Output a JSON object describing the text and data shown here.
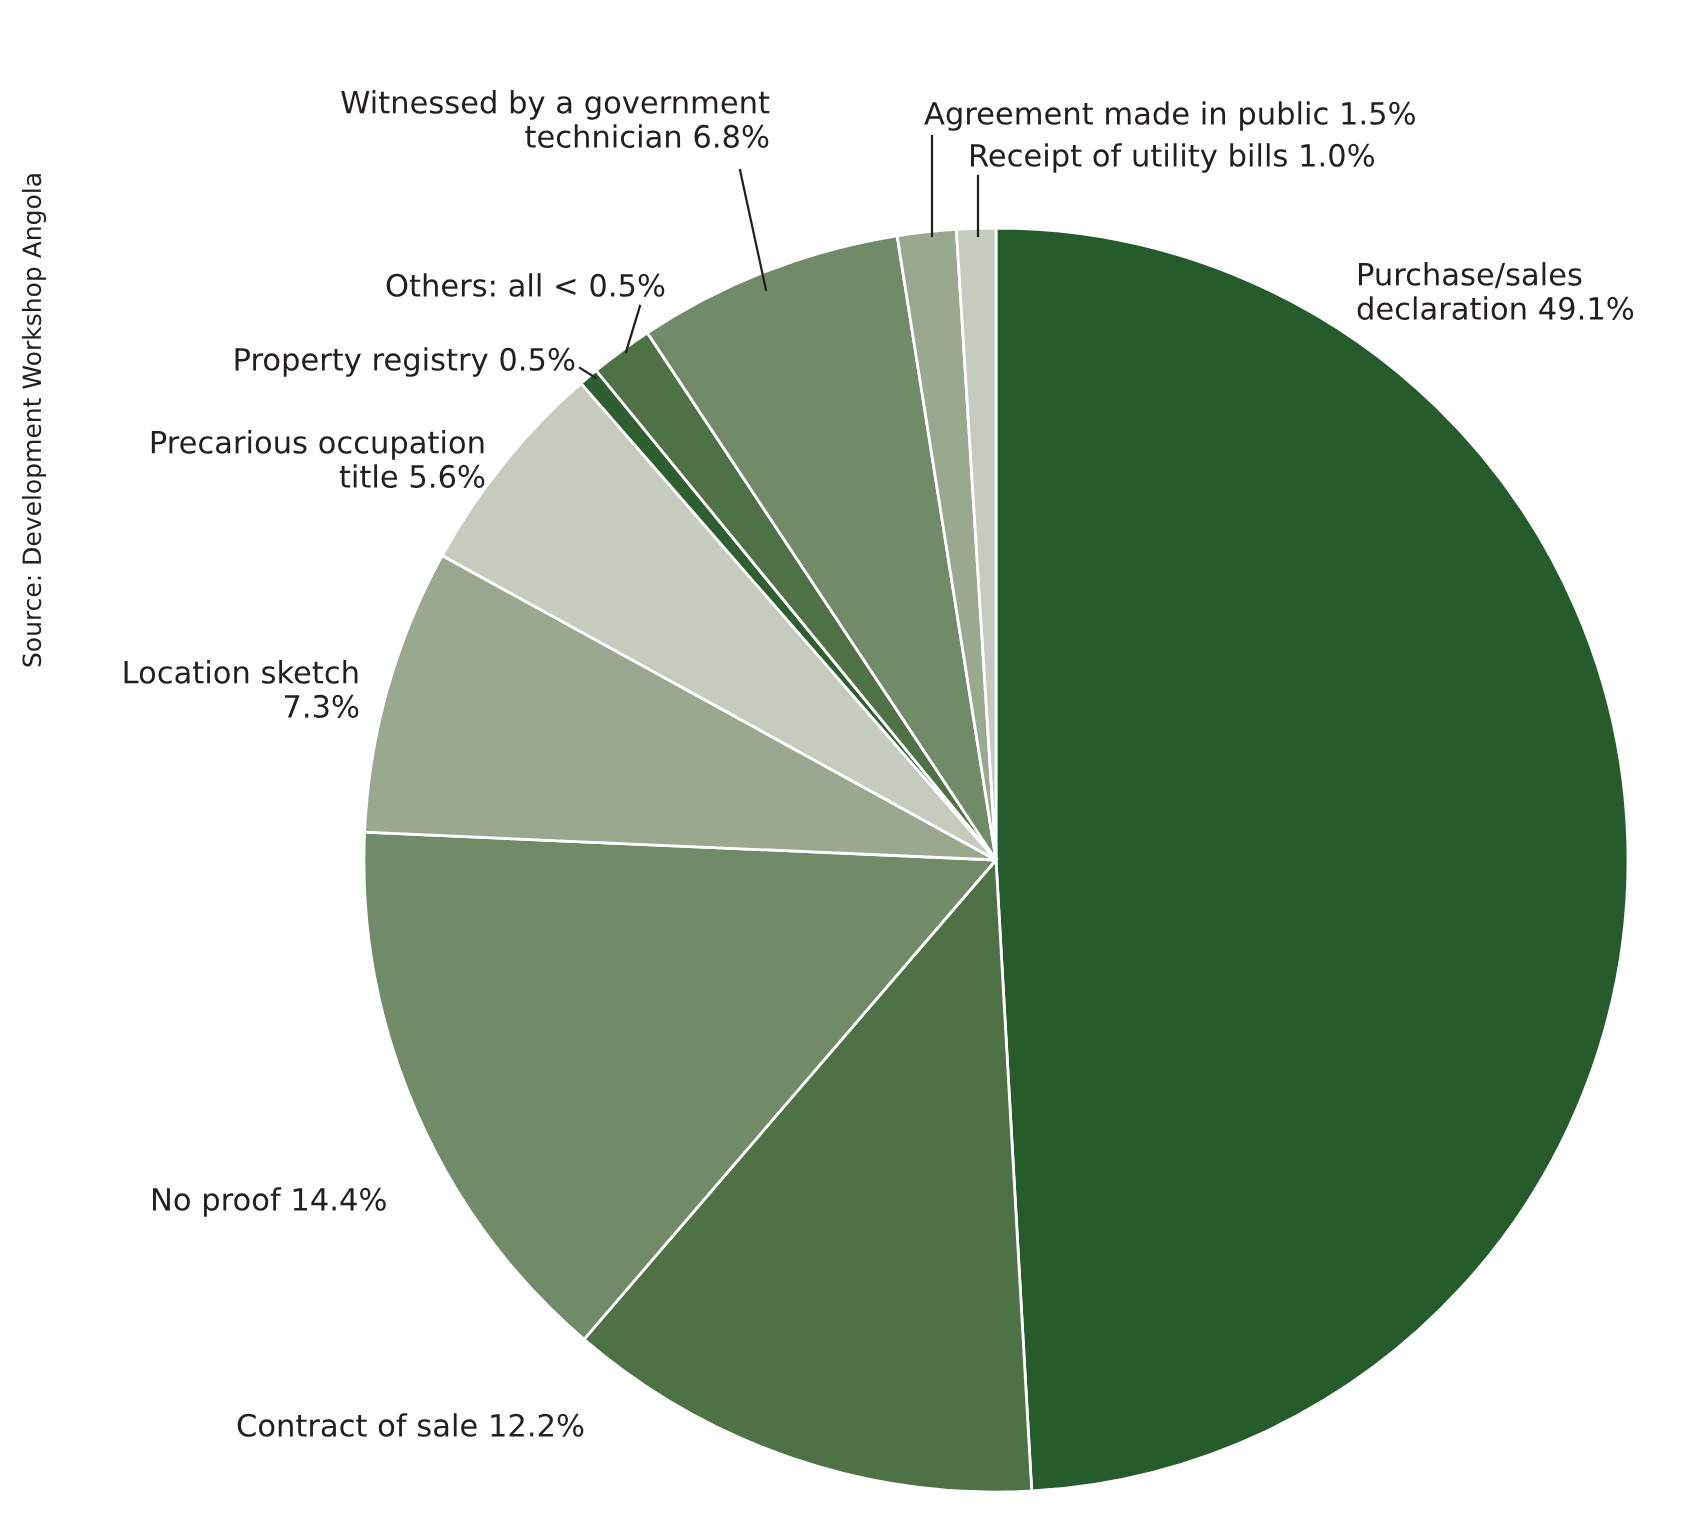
{
  "chart_data": {
    "type": "pie",
    "categories": [
      "Purchase/sales\ndeclaration",
      "Contract of sale",
      "No proof",
      "Location sketch",
      "Precarious occupation\ntitle",
      "Property registry",
      "Others: all < 0.5%",
      "Witnessed by a government\ntechnician",
      "Agreement made in public",
      "Receipt of utility bills"
    ],
    "values": [
      49.1,
      12.2,
      14.4,
      7.3,
      5.6,
      0.5,
      1.6,
      6.8,
      1.5,
      1.0
    ],
    "value_labels": [
      "49.1%",
      "12.2%",
      "14.4%",
      "7.3%",
      "5.6%",
      "0.5%",
      null,
      "6.8%",
      "1.5%",
      "1.0%"
    ],
    "colors": [
      "#265b2b",
      "#4e7145",
      "#718b68",
      "#9aa88f",
      "#c5cbbd",
      "#2f5f30",
      "#4e7145",
      "#718b68",
      "#9aa88f",
      "#c5cbbd"
    ],
    "annotations": [
      "Source: Development Workshop Angola"
    ]
  }
}
